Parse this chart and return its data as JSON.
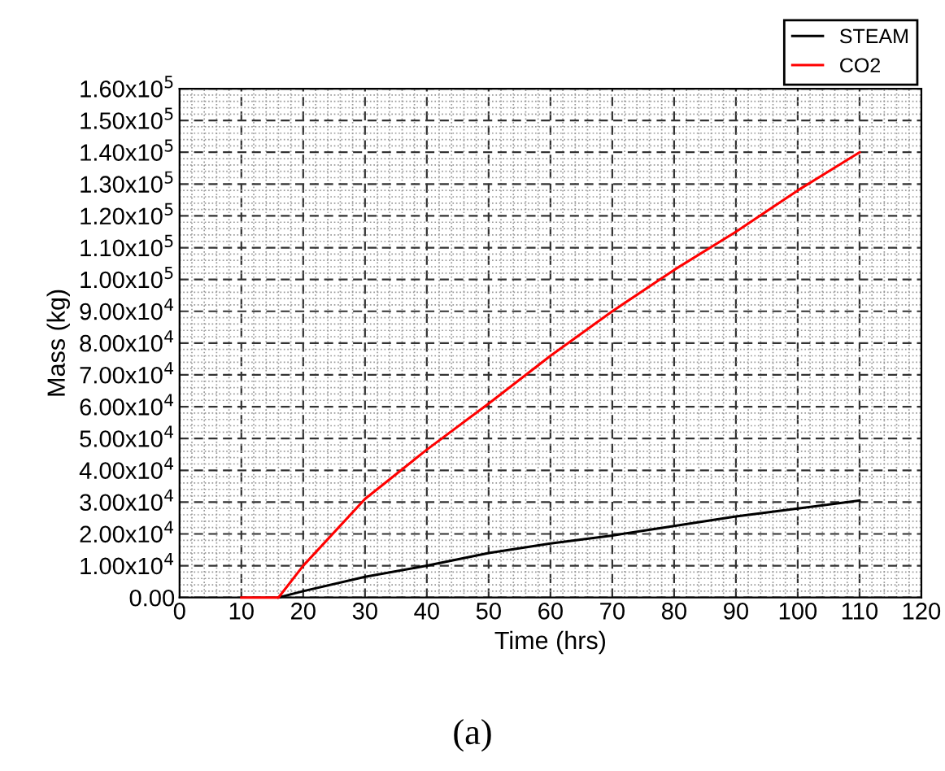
{
  "chart_data": {
    "type": "line",
    "xlabel": "Time (hrs)",
    "ylabel": "Mass (kg)",
    "annotations": [
      "(a)"
    ],
    "x": [
      10,
      16,
      20,
      30,
      40,
      50,
      60,
      70,
      80,
      90,
      100,
      110
    ],
    "series": [
      {
        "name": "STEAM",
        "color": "#000000",
        "x": [
          16,
          20,
          30,
          40,
          50,
          60,
          70,
          80,
          90,
          100,
          110
        ],
        "values": [
          0,
          2000,
          6500,
          10000,
          14000,
          17000,
          19500,
          22500,
          25500,
          28000,
          30500
        ]
      },
      {
        "name": "CO2",
        "color": "#ff0000",
        "values": [
          0,
          0,
          10000,
          31000,
          46500,
          61000,
          76000,
          90000,
          103000,
          115000,
          128000,
          140000
        ]
      }
    ],
    "xlim": [
      0,
      120
    ],
    "xticks": [
      0,
      10,
      20,
      30,
      40,
      50,
      60,
      70,
      80,
      90,
      100,
      110,
      120
    ],
    "ylim": [
      0,
      160000
    ],
    "yticks": [
      {
        "value": 0,
        "label": "0.00"
      },
      {
        "value": 10000,
        "label": "1.00x10$^{4}$"
      },
      {
        "value": 20000,
        "label": "2.00x10$^{4}$"
      },
      {
        "value": 30000,
        "label": "3.00x10$^{4}$"
      },
      {
        "value": 40000,
        "label": "4.00x10$^{4}$"
      },
      {
        "value": 50000,
        "label": "5.00x10$^{4}$"
      },
      {
        "value": 60000,
        "label": "6.00x10$^{4}$"
      },
      {
        "value": 70000,
        "label": "7.00x10$^{4}$"
      },
      {
        "value": 80000,
        "label": "8.00x10$^{4}$"
      },
      {
        "value": 90000,
        "label": "9.00x10$^{4}$"
      },
      {
        "value": 100000,
        "label": "1.00x10$^{5}$"
      },
      {
        "value": 110000,
        "label": "1.10x10$^{5}$"
      },
      {
        "value": 120000,
        "label": "1.20x10$^{5}$"
      },
      {
        "value": 130000,
        "label": "1.30x10$^{5}$"
      },
      {
        "value": 140000,
        "label": "1.40x10$^{5}$"
      },
      {
        "value": 150000,
        "label": "1.50x10$^{5}$"
      },
      {
        "value": 160000,
        "label": "1.60x10$^{5}$"
      }
    ],
    "grid": true,
    "legend": "top right",
    "marker": "none",
    "line_style": "solid"
  }
}
